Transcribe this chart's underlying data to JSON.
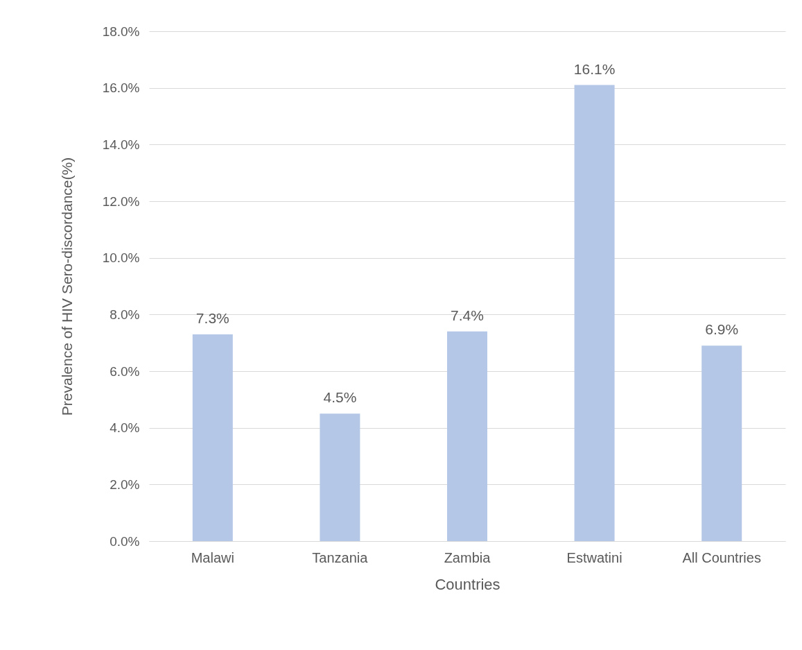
{
  "chart_data": {
    "type": "bar",
    "categories": [
      "Malawi",
      "Tanzania",
      "Zambia",
      "Estwatini",
      "All Countries"
    ],
    "values": [
      7.3,
      4.5,
      7.4,
      16.1,
      6.9
    ],
    "value_labels": [
      "7.3%",
      "4.5%",
      "7.4%",
      "16.1%",
      "6.9%"
    ],
    "color": "#b4c7e7",
    "xlabel": "Countries",
    "ylabel": "Prevalence of HIV Sero-discordance(%)",
    "ylim": [
      0,
      18
    ],
    "yticks": [
      {
        "value": 0,
        "label": "0.0%"
      },
      {
        "value": 2,
        "label": "2.0%"
      },
      {
        "value": 4,
        "label": "4.0%"
      },
      {
        "value": 6,
        "label": "6.0%"
      },
      {
        "value": 8,
        "label": "8.0%"
      },
      {
        "value": 10,
        "label": "10.0%"
      },
      {
        "value": 12,
        "label": "12.0%"
      },
      {
        "value": 14,
        "label": "14.0%"
      },
      {
        "value": 16,
        "label": "16.0%"
      },
      {
        "value": 18,
        "label": "18.0%"
      }
    ],
    "grid": "y"
  }
}
